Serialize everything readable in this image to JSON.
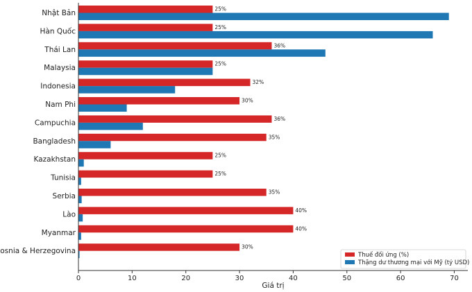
{
  "chart_data": {
    "type": "bar",
    "orientation": "horizontal",
    "categories": [
      "Nhật Bản",
      "Hàn Quốc",
      "Thái Lan",
      "Malaysia",
      "Indonesia",
      "Nam Phi",
      "Campuchia",
      "Bangladesh",
      "Kazakhstan",
      "Tunisia",
      "Serbia",
      "Lào",
      "Myanmar",
      "Bosnia & Herzegovina"
    ],
    "series": [
      {
        "name": "Thuế đối ứng (%)",
        "color": "#d62728",
        "values": [
          25,
          25,
          36,
          25,
          32,
          30,
          36,
          35,
          25,
          25,
          35,
          40,
          40,
          30
        ],
        "labels": [
          "25%",
          "25%",
          "36%",
          "25%",
          "32%",
          "30%",
          "36%",
          "35%",
          "25%",
          "25%",
          "35%",
          "40%",
          "40%",
          "30%"
        ]
      },
      {
        "name": "Thặng dư thương mại với Mỹ (tỷ USD)",
        "color": "#1f77b4",
        "values": [
          69,
          66,
          46,
          25,
          18,
          9,
          12,
          6,
          1,
          0.5,
          0.6,
          0.8,
          0.5,
          0.2
        ]
      }
    ],
    "xlabel": "Giá trị",
    "ylabel": "",
    "xlim": [
      0,
      72
    ],
    "xticks": [
      0,
      10,
      20,
      30,
      40,
      50,
      60,
      70
    ],
    "legend_position": "bottom-right",
    "grid": false
  }
}
